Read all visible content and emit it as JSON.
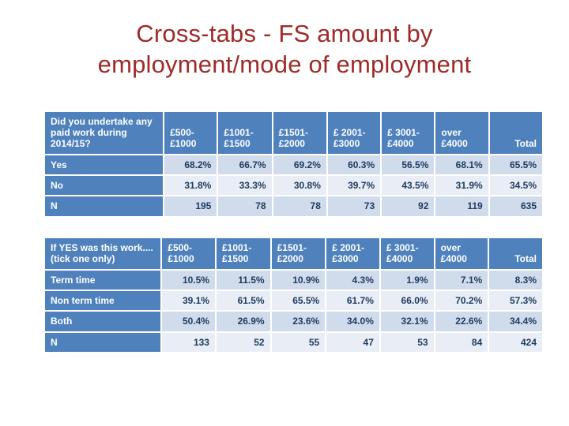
{
  "title": {
    "line1": "Cross-tabs - FS amount by",
    "line2": "employment/mode of employment"
  },
  "colors": {
    "title": "#9e2b28",
    "header_bg": "#4f81bd",
    "band_a": "#d0dcec",
    "band_b": "#e9eef6",
    "data_text": "#1f3a5f"
  },
  "tables": [
    {
      "question": "Did you undertake any paid work during 2014/15?",
      "columns": [
        {
          "lines": [
            "£500-",
            "£1000"
          ]
        },
        {
          "lines": [
            "£1001-",
            "£1500"
          ]
        },
        {
          "lines": [
            "£1501-",
            "£2000"
          ]
        },
        {
          "lines": [
            "£ 2001-",
            "£3000"
          ]
        },
        {
          "lines": [
            "£ 3001-",
            "£4000"
          ]
        },
        {
          "lines": [
            "over",
            "£4000"
          ]
        },
        {
          "lines": [
            "Total"
          ]
        }
      ],
      "rows": [
        {
          "label": "Yes",
          "values": [
            "68.2%",
            "66.7%",
            "69.2%",
            "60.3%",
            "56.5%",
            "68.1%",
            "65.5%"
          ]
        },
        {
          "label": "No",
          "values": [
            "31.8%",
            "33.3%",
            "30.8%",
            "39.7%",
            "43.5%",
            "31.9%",
            "34.5%"
          ]
        },
        {
          "label": "N",
          "values": [
            "195",
            "78",
            "78",
            "73",
            "92",
            "119",
            "635"
          ]
        }
      ]
    },
    {
      "question": "If YES was this work.... (tick one only)",
      "columns": [
        {
          "lines": [
            "£500-",
            "£1000"
          ]
        },
        {
          "lines": [
            "£1001-",
            "£1500"
          ]
        },
        {
          "lines": [
            "£1501-",
            "£2000"
          ]
        },
        {
          "lines": [
            "£ 2001-",
            "£3000"
          ]
        },
        {
          "lines": [
            "£ 3001-",
            "£4000"
          ]
        },
        {
          "lines": [
            "over",
            "£4000"
          ]
        },
        {
          "lines": [
            "Total"
          ]
        }
      ],
      "rows": [
        {
          "label": "Term time",
          "values": [
            "10.5%",
            "11.5%",
            "10.9%",
            "4.3%",
            "1.9%",
            "7.1%",
            "8.3%"
          ]
        },
        {
          "label": "Non term time",
          "values": [
            "39.1%",
            "61.5%",
            "65.5%",
            "61.7%",
            "66.0%",
            "70.2%",
            "57.3%"
          ]
        },
        {
          "label": "Both",
          "values": [
            "50.4%",
            "26.9%",
            "23.6%",
            "34.0%",
            "32.1%",
            "22.6%",
            "34.4%"
          ]
        },
        {
          "label": "N",
          "values": [
            "133",
            "52",
            "55",
            "47",
            "53",
            "84",
            "424"
          ]
        }
      ]
    }
  ]
}
